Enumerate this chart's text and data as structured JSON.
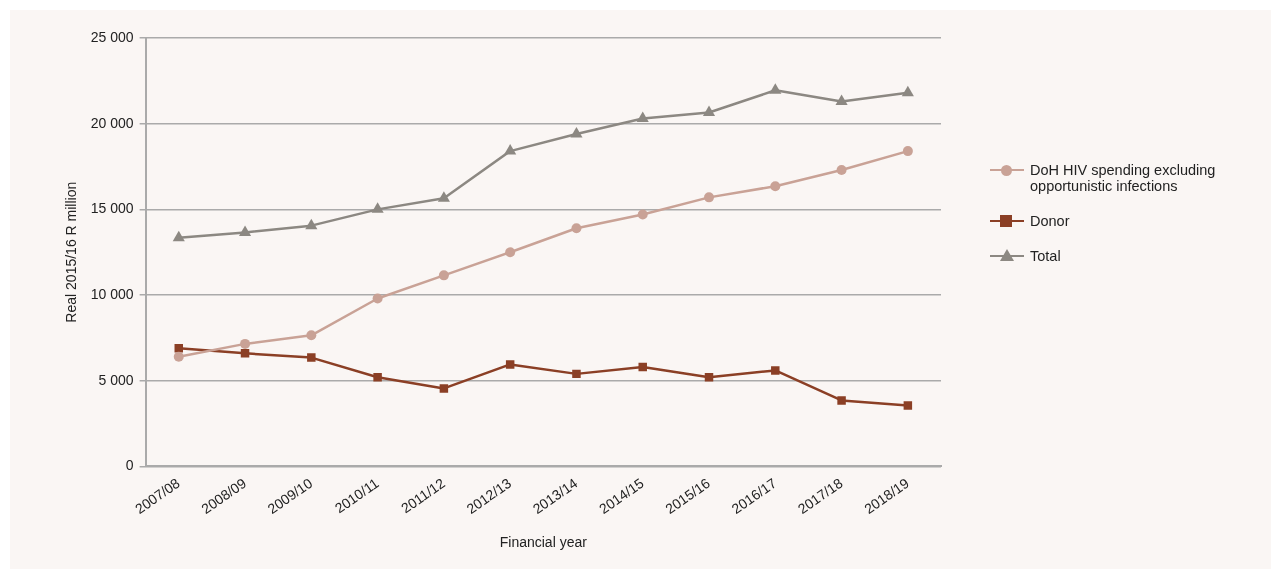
{
  "chart_data": {
    "type": "line",
    "xlabel": "Financial year",
    "ylabel": "Real 2015/16 R million",
    "categories": [
      "2007/08",
      "2008/09",
      "2009/10",
      "2010/11",
      "2011/12",
      "2012/13",
      "2013/14",
      "2014/15",
      "2015/16",
      "2016/17",
      "2017/18",
      "2018/19"
    ],
    "series": [
      {
        "name": "DoH HIV spending excluding opportunistic infections",
        "color": "#c9a296",
        "marker": "circle",
        "values": [
          6400,
          7150,
          7650,
          9800,
          11150,
          12500,
          13900,
          14700,
          15700,
          16350,
          17300,
          18400
        ]
      },
      {
        "name": "Donor",
        "color": "#8b3f25",
        "marker": "square",
        "values": [
          6900,
          6600,
          6350,
          5200,
          4550,
          5950,
          5400,
          5800,
          5200,
          5600,
          3850,
          3550
        ]
      },
      {
        "name": "Total",
        "color": "#8c8882",
        "marker": "triangle",
        "values": [
          13350,
          13650,
          14050,
          15000,
          15650,
          18400,
          19400,
          20300,
          20650,
          21950,
          21300,
          21800
        ]
      }
    ],
    "ylim": [
      0,
      25000
    ],
    "yticks": [
      {
        "value": 0,
        "label": "0"
      },
      {
        "value": 5000,
        "label": "5 000"
      },
      {
        "value": 10000,
        "label": "10 000"
      },
      {
        "value": 15000,
        "label": "15 000"
      },
      {
        "value": 20000,
        "label": "20 000"
      },
      {
        "value": 25000,
        "label": "25 000"
      }
    ],
    "grid": "y",
    "legend": "right",
    "line_style": "solid"
  }
}
